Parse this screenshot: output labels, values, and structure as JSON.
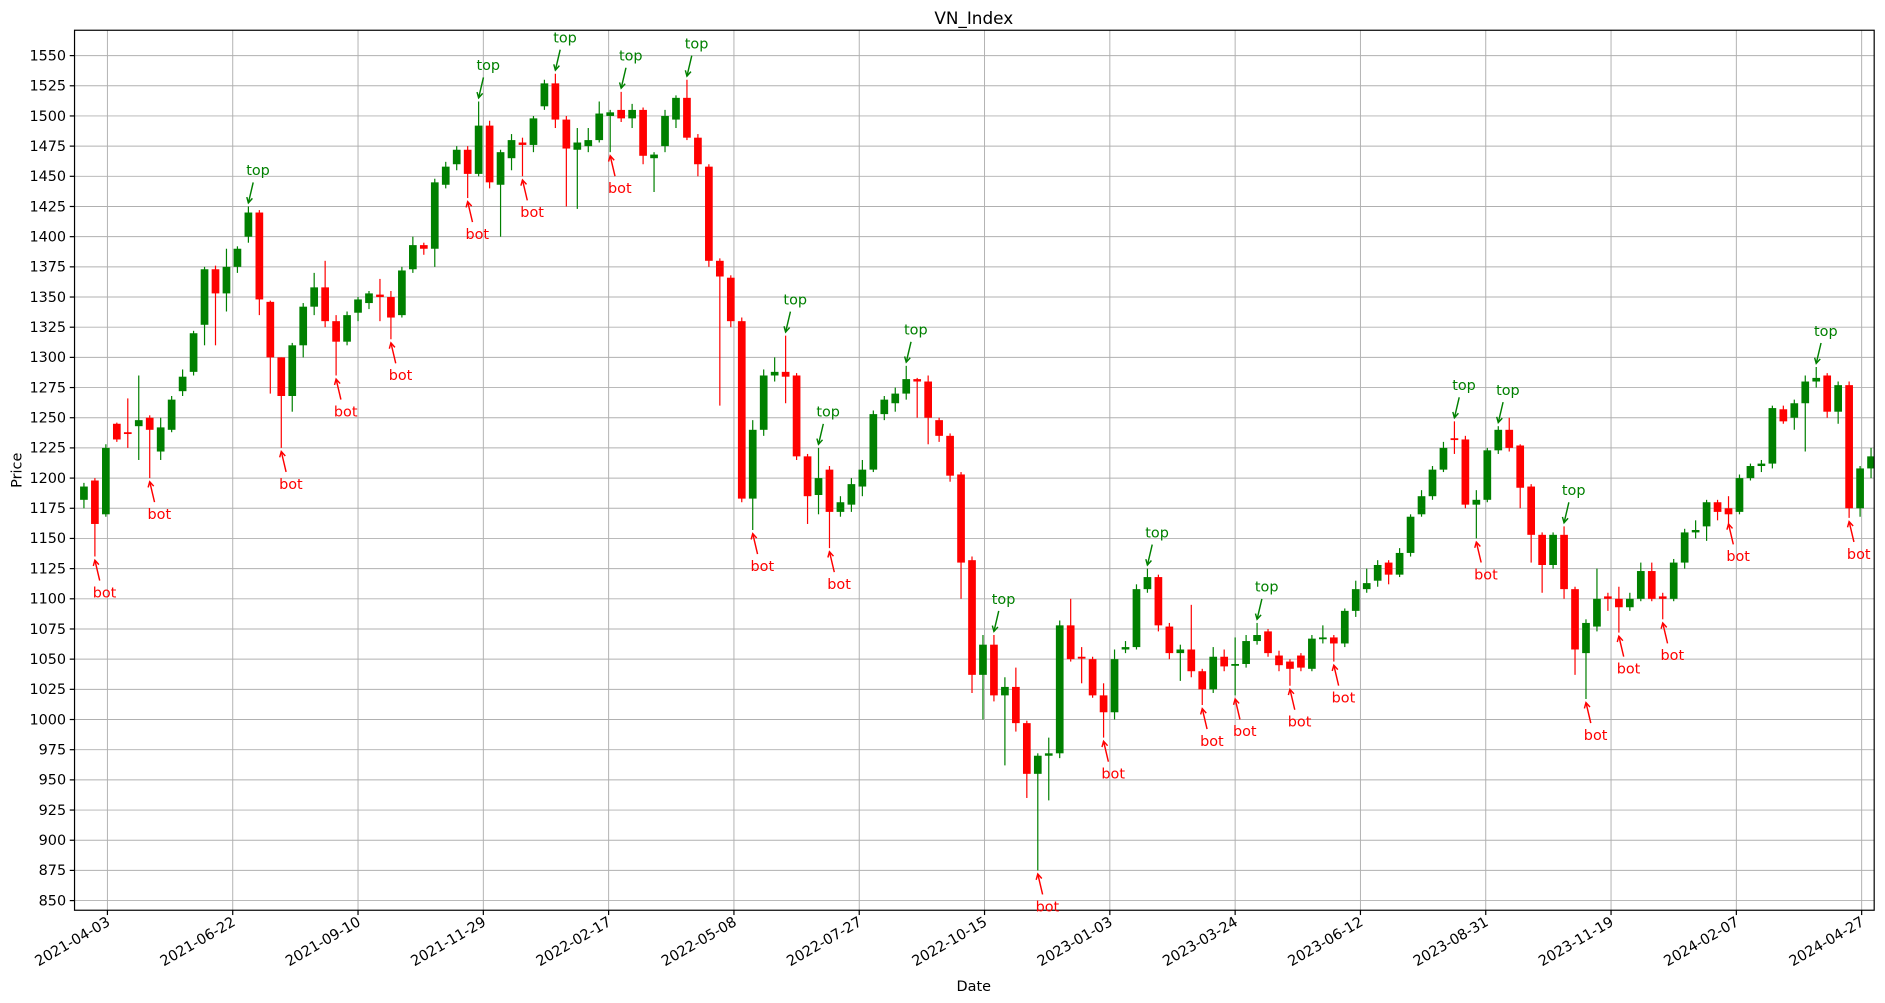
{
  "chart_data": {
    "type": "candlestick",
    "title": "VN_Index",
    "xlabel": "Date",
    "ylabel": "Price",
    "up_color": "#008000",
    "down_color": "#ff0000",
    "grid": true,
    "xlim": [
      "2021-03-13",
      "2024-05-05"
    ],
    "ylim": [
      842,
      1571
    ],
    "xticks": [
      "2021-04-03",
      "2021-06-22",
      "2021-09-10",
      "2021-11-29",
      "2022-02-17",
      "2022-05-08",
      "2022-07-27",
      "2022-10-15",
      "2023-01-03",
      "2023-03-24",
      "2023-06-12",
      "2023-08-31",
      "2023-11-19",
      "2024-02-07",
      "2024-04-27"
    ],
    "yticks": [
      850,
      875,
      900,
      925,
      950,
      975,
      1000,
      1025,
      1050,
      1075,
      1100,
      1125,
      1150,
      1175,
      1200,
      1225,
      1250,
      1275,
      1300,
      1325,
      1350,
      1375,
      1400,
      1425,
      1450,
      1475,
      1500,
      1525,
      1550
    ],
    "x": [
      "2021-03-19",
      "2021-03-26",
      "2021-04-02",
      "2021-04-09",
      "2021-04-16",
      "2021-04-23",
      "2021-04-30",
      "2021-05-07",
      "2021-05-14",
      "2021-05-21",
      "2021-05-28",
      "2021-06-04",
      "2021-06-11",
      "2021-06-18",
      "2021-06-25",
      "2021-07-02",
      "2021-07-09",
      "2021-07-16",
      "2021-07-23",
      "2021-07-30",
      "2021-08-06",
      "2021-08-13",
      "2021-08-20",
      "2021-08-27",
      "2021-09-03",
      "2021-09-10",
      "2021-09-17",
      "2021-09-24",
      "2021-10-01",
      "2021-10-08",
      "2021-10-15",
      "2021-10-22",
      "2021-10-29",
      "2021-11-05",
      "2021-11-12",
      "2021-11-19",
      "2021-11-26",
      "2021-12-03",
      "2021-12-10",
      "2021-12-17",
      "2021-12-24",
      "2021-12-31",
      "2022-01-07",
      "2022-01-14",
      "2022-01-21",
      "2022-01-28",
      "2022-02-04",
      "2022-02-11",
      "2022-02-18",
      "2022-02-25",
      "2022-03-04",
      "2022-03-11",
      "2022-03-18",
      "2022-03-25",
      "2022-04-01",
      "2022-04-08",
      "2022-04-15",
      "2022-04-22",
      "2022-04-29",
      "2022-05-06",
      "2022-05-13",
      "2022-05-20",
      "2022-05-27",
      "2022-06-03",
      "2022-06-10",
      "2022-06-17",
      "2022-06-24",
      "2022-07-01",
      "2022-07-08",
      "2022-07-15",
      "2022-07-22",
      "2022-07-29",
      "2022-08-05",
      "2022-08-12",
      "2022-08-19",
      "2022-08-26",
      "2022-09-02",
      "2022-09-09",
      "2022-09-16",
      "2022-09-23",
      "2022-09-30",
      "2022-10-07",
      "2022-10-14",
      "2022-10-21",
      "2022-10-28",
      "2022-11-04",
      "2022-11-11",
      "2022-11-18",
      "2022-11-25",
      "2022-12-02",
      "2022-12-09",
      "2022-12-16",
      "2022-12-23",
      "2022-12-30",
      "2023-01-06",
      "2023-01-13",
      "2023-01-20",
      "2023-01-27",
      "2023-02-03",
      "2023-02-10",
      "2023-02-17",
      "2023-02-24",
      "2023-03-03",
      "2023-03-10",
      "2023-03-17",
      "2023-03-24",
      "2023-03-31",
      "2023-04-07",
      "2023-04-14",
      "2023-04-21",
      "2023-04-28",
      "2023-05-05",
      "2023-05-12",
      "2023-05-19",
      "2023-05-26",
      "2023-06-02",
      "2023-06-09",
      "2023-06-16",
      "2023-06-23",
      "2023-06-30",
      "2023-07-07",
      "2023-07-14",
      "2023-07-21",
      "2023-07-28",
      "2023-08-04",
      "2023-08-11",
      "2023-08-18",
      "2023-08-25",
      "2023-09-01",
      "2023-09-08",
      "2023-09-15",
      "2023-09-22",
      "2023-09-29",
      "2023-10-06",
      "2023-10-13",
      "2023-10-20",
      "2023-10-27",
      "2023-11-03",
      "2023-11-10",
      "2023-11-17",
      "2023-11-24",
      "2023-12-01",
      "2023-12-08",
      "2023-12-15",
      "2023-12-22",
      "2023-12-29",
      "2024-01-05",
      "2024-01-12",
      "2024-01-19",
      "2024-01-26",
      "2024-02-02",
      "2024-02-09",
      "2024-02-16",
      "2024-02-23",
      "2024-03-01",
      "2024-03-08",
      "2024-03-15",
      "2024-03-22",
      "2024-03-29",
      "2024-04-05",
      "2024-04-12",
      "2024-04-19",
      "2024-04-26",
      "2024-05-03"
    ],
    "open": [
      1182,
      1198,
      1170,
      1245,
      1238,
      1243,
      1250,
      1222,
      1240,
      1272,
      1288,
      1327,
      1373,
      1353,
      1375,
      1400,
      1420,
      1346,
      1300,
      1268,
      1310,
      1342,
      1358,
      1330,
      1313,
      1337,
      1345,
      1352,
      1350,
      1335,
      1373,
      1393,
      1390,
      1443,
      1460,
      1472,
      1452,
      1492,
      1443,
      1465,
      1478,
      1476,
      1508,
      1527,
      1497,
      1472,
      1475,
      1480,
      1500,
      1505,
      1498,
      1505,
      1465,
      1475,
      1497,
      1515,
      1482,
      1458,
      1380,
      1366,
      1330,
      1183,
      1240,
      1285,
      1288,
      1285,
      1218,
      1186,
      1207,
      1172,
      1178,
      1193,
      1207,
      1253,
      1262,
      1270,
      1282,
      1280,
      1248,
      1235,
      1203,
      1132,
      1037,
      1062,
      1020,
      1027,
      997,
      955,
      970,
      972,
      1078,
      1052,
      1050,
      1020,
      1006,
      1058,
      1060,
      1108,
      1118,
      1077,
      1055,
      1058,
      1040,
      1025,
      1052,
      1045,
      1046,
      1065,
      1073,
      1053,
      1048,
      1053,
      1042,
      1067,
      1068,
      1063,
      1090,
      1108,
      1115,
      1130,
      1120,
      1138,
      1170,
      1185,
      1207,
      1233,
      1232,
      1178,
      1182,
      1223,
      1240,
      1227,
      1193,
      1153,
      1128,
      1153,
      1108,
      1055,
      1077,
      1102,
      1100,
      1093,
      1100,
      1123,
      1102,
      1100,
      1130,
      1155,
      1160,
      1180,
      1175,
      1172,
      1200,
      1210,
      1212,
      1257,
      1250,
      1262,
      1280,
      1285,
      1255,
      1277,
      1175,
      1208
    ],
    "high": [
      1196,
      1200,
      1228,
      1246,
      1266,
      1285,
      1252,
      1250,
      1268,
      1290,
      1322,
      1375,
      1376,
      1390,
      1392,
      1425,
      1422,
      1347,
      1300,
      1312,
      1345,
      1370,
      1380,
      1335,
      1338,
      1350,
      1355,
      1365,
      1355,
      1375,
      1400,
      1395,
      1448,
      1462,
      1475,
      1475,
      1512,
      1496,
      1472,
      1485,
      1482,
      1500,
      1530,
      1535,
      1500,
      1490,
      1490,
      1512,
      1505,
      1520,
      1510,
      1507,
      1470,
      1505,
      1517,
      1530,
      1485,
      1460,
      1382,
      1368,
      1333,
      1248,
      1290,
      1300,
      1318,
      1287,
      1220,
      1225,
      1210,
      1185,
      1200,
      1215,
      1256,
      1268,
      1275,
      1293,
      1283,
      1285,
      1250,
      1237,
      1205,
      1135,
      1070,
      1070,
      1035,
      1043,
      999,
      972,
      985,
      1082,
      1100,
      1060,
      1052,
      1030,
      1058,
      1065,
      1112,
      1125,
      1120,
      1080,
      1062,
      1095,
      1042,
      1060,
      1058,
      1068,
      1070,
      1080,
      1075,
      1057,
      1050,
      1055,
      1070,
      1078,
      1070,
      1092,
      1115,
      1125,
      1132,
      1132,
      1142,
      1170,
      1190,
      1210,
      1230,
      1247,
      1235,
      1190,
      1225,
      1243,
      1250,
      1228,
      1195,
      1155,
      1155,
      1160,
      1110,
      1083,
      1125,
      1105,
      1110,
      1105,
      1130,
      1130,
      1105,
      1133,
      1158,
      1165,
      1182,
      1182,
      1185,
      1203,
      1212,
      1215,
      1260,
      1260,
      1265,
      1285,
      1292,
      1287,
      1280,
      1280,
      1210,
      1225
    ],
    "low": [
      1175,
      1135,
      1168,
      1230,
      1225,
      1215,
      1200,
      1215,
      1238,
      1268,
      1285,
      1310,
      1310,
      1338,
      1370,
      1395,
      1335,
      1270,
      1225,
      1255,
      1300,
      1335,
      1325,
      1285,
      1310,
      1330,
      1340,
      1330,
      1315,
      1333,
      1370,
      1385,
      1375,
      1440,
      1455,
      1432,
      1450,
      1440,
      1400,
      1455,
      1450,
      1470,
      1505,
      1490,
      1425,
      1423,
      1470,
      1478,
      1470,
      1495,
      1490,
      1460,
      1437,
      1470,
      1490,
      1480,
      1450,
      1375,
      1260,
      1325,
      1180,
      1157,
      1235,
      1280,
      1262,
      1215,
      1162,
      1170,
      1142,
      1168,
      1172,
      1185,
      1205,
      1248,
      1255,
      1265,
      1250,
      1228,
      1230,
      1197,
      1100,
      1022,
      1000,
      1015,
      962,
      990,
      935,
      875,
      933,
      968,
      1048,
      1030,
      1018,
      985,
      1000,
      1055,
      1058,
      1105,
      1073,
      1050,
      1032,
      1035,
      1012,
      1022,
      1040,
      1020,
      1043,
      1062,
      1052,
      1040,
      1028,
      1040,
      1040,
      1063,
      1048,
      1060,
      1085,
      1105,
      1110,
      1112,
      1118,
      1135,
      1168,
      1182,
      1205,
      1220,
      1175,
      1150,
      1180,
      1220,
      1222,
      1175,
      1130,
      1105,
      1125,
      1100,
      1037,
      1017,
      1073,
      1090,
      1072,
      1090,
      1098,
      1098,
      1083,
      1098,
      1125,
      1150,
      1148,
      1165,
      1160,
      1170,
      1198,
      1205,
      1208,
      1245,
      1240,
      1222,
      1275,
      1250,
      1245,
      1167,
      1168,
      1200
    ],
    "close": [
      1193,
      1162,
      1225,
      1232,
      1237,
      1248,
      1240,
      1242,
      1265,
      1284,
      1320,
      1373,
      1353,
      1375,
      1390,
      1420,
      1348,
      1300,
      1268,
      1310,
      1342,
      1358,
      1330,
      1313,
      1335,
      1348,
      1353,
      1350,
      1333,
      1372,
      1393,
      1390,
      1445,
      1458,
      1472,
      1452,
      1492,
      1445,
      1470,
      1480,
      1476,
      1498,
      1527,
      1497,
      1473,
      1478,
      1480,
      1502,
      1503,
      1498,
      1505,
      1467,
      1468,
      1500,
      1515,
      1482,
      1460,
      1380,
      1367,
      1330,
      1183,
      1240,
      1285,
      1288,
      1284,
      1218,
      1185,
      1200,
      1172,
      1180,
      1195,
      1207,
      1253,
      1265,
      1270,
      1282,
      1280,
      1250,
      1235,
      1202,
      1130,
      1037,
      1062,
      1020,
      1027,
      997,
      955,
      970,
      972,
      1078,
      1050,
      1051,
      1020,
      1006,
      1050,
      1060,
      1108,
      1118,
      1078,
      1055,
      1058,
      1040,
      1025,
      1052,
      1044,
      1046,
      1065,
      1070,
      1055,
      1045,
      1042,
      1043,
      1067,
      1068,
      1063,
      1090,
      1108,
      1113,
      1128,
      1120,
      1138,
      1168,
      1185,
      1207,
      1225,
      1232,
      1178,
      1182,
      1223,
      1240,
      1225,
      1192,
      1153,
      1128,
      1153,
      1108,
      1058,
      1080,
      1100,
      1100,
      1093,
      1100,
      1123,
      1100,
      1100,
      1130,
      1155,
      1157,
      1180,
      1172,
      1170,
      1200,
      1210,
      1212,
      1258,
      1247,
      1262,
      1280,
      1283,
      1255,
      1277,
      1175,
      1208,
      1218
    ],
    "annotations": [
      {
        "text": "bot",
        "x": "2021-03-26",
        "y": 1135,
        "color": "#ff0000"
      },
      {
        "text": "bot",
        "x": "2021-04-30",
        "y": 1200,
        "color": "#ff0000"
      },
      {
        "text": "top",
        "x": "2021-07-02",
        "y": 1425,
        "color": "#008000"
      },
      {
        "text": "bot",
        "x": "2021-07-23",
        "y": 1225,
        "color": "#ff0000"
      },
      {
        "text": "bot",
        "x": "2021-08-27",
        "y": 1285,
        "color": "#ff0000"
      },
      {
        "text": "bot",
        "x": "2021-10-01",
        "y": 1315,
        "color": "#ff0000"
      },
      {
        "text": "bot",
        "x": "2021-11-19",
        "y": 1432,
        "color": "#ff0000"
      },
      {
        "text": "top",
        "x": "2021-11-26",
        "y": 1512,
        "color": "#008000"
      },
      {
        "text": "bot",
        "x": "2021-12-24",
        "y": 1450,
        "color": "#ff0000"
      },
      {
        "text": "top",
        "x": "2022-01-14",
        "y": 1535,
        "color": "#008000"
      },
      {
        "text": "bot",
        "x": "2022-02-18",
        "y": 1470,
        "color": "#ff0000"
      },
      {
        "text": "top",
        "x": "2022-02-25",
        "y": 1520,
        "color": "#008000"
      },
      {
        "text": "top",
        "x": "2022-04-08",
        "y": 1530,
        "color": "#008000"
      },
      {
        "text": "bot",
        "x": "2022-05-20",
        "y": 1157,
        "color": "#ff0000"
      },
      {
        "text": "top",
        "x": "2022-06-10",
        "y": 1318,
        "color": "#008000"
      },
      {
        "text": "top",
        "x": "2022-07-01",
        "y": 1225,
        "color": "#008000"
      },
      {
        "text": "bot",
        "x": "2022-07-08",
        "y": 1142,
        "color": "#ff0000"
      },
      {
        "text": "top",
        "x": "2022-08-26",
        "y": 1293,
        "color": "#008000"
      },
      {
        "text": "top",
        "x": "2022-10-21",
        "y": 1070,
        "color": "#008000"
      },
      {
        "text": "bot",
        "x": "2022-11-18",
        "y": 875,
        "color": "#ff0000"
      },
      {
        "text": "bot",
        "x": "2022-12-30",
        "y": 985,
        "color": "#ff0000"
      },
      {
        "text": "top",
        "x": "2023-01-27",
        "y": 1125,
        "color": "#008000"
      },
      {
        "text": "bot",
        "x": "2023-03-03",
        "y": 1012,
        "color": "#ff0000"
      },
      {
        "text": "bot",
        "x": "2023-03-24",
        "y": 1020,
        "color": "#ff0000"
      },
      {
        "text": "top",
        "x": "2023-04-07",
        "y": 1080,
        "color": "#008000"
      },
      {
        "text": "bot",
        "x": "2023-04-28",
        "y": 1028,
        "color": "#ff0000"
      },
      {
        "text": "bot",
        "x": "2023-05-26",
        "y": 1048,
        "color": "#ff0000"
      },
      {
        "text": "top",
        "x": "2023-08-11",
        "y": 1247,
        "color": "#008000"
      },
      {
        "text": "bot",
        "x": "2023-08-25",
        "y": 1150,
        "color": "#ff0000"
      },
      {
        "text": "top",
        "x": "2023-09-08",
        "y": 1243,
        "color": "#008000"
      },
      {
        "text": "top",
        "x": "2023-10-20",
        "y": 1160,
        "color": "#008000"
      },
      {
        "text": "bot",
        "x": "2023-11-03",
        "y": 1017,
        "color": "#ff0000"
      },
      {
        "text": "bot",
        "x": "2023-11-24",
        "y": 1072,
        "color": "#ff0000"
      },
      {
        "text": "bot",
        "x": "2023-12-22",
        "y": 1083,
        "color": "#ff0000"
      },
      {
        "text": "bot",
        "x": "2024-02-02",
        "y": 1165,
        "color": "#ff0000"
      },
      {
        "text": "top",
        "x": "2024-03-29",
        "y": 1292,
        "color": "#008000"
      },
      {
        "text": "bot",
        "x": "2024-04-19",
        "y": 1167,
        "color": "#ff0000"
      }
    ]
  }
}
